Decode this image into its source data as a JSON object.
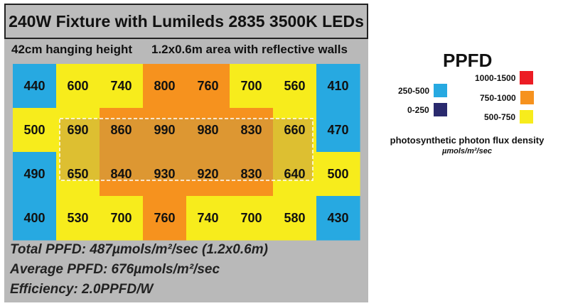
{
  "title": "240W Fixture with Lumileds 2835 3500K LEDs",
  "subtitle_left": "42cm hanging height",
  "subtitle_right": "1.2x0.6m area with reflective walls",
  "chart_data": {
    "type": "heatmap",
    "rows": [
      [
        440,
        600,
        740,
        800,
        760,
        700,
        560,
        410
      ],
      [
        500,
        690,
        860,
        990,
        980,
        830,
        660,
        470
      ],
      [
        490,
        650,
        840,
        930,
        920,
        830,
        640,
        500
      ],
      [
        400,
        530,
        700,
        760,
        740,
        700,
        580,
        430
      ]
    ],
    "color_bins": [
      {
        "label": "0-250",
        "min": 0,
        "max": 250,
        "color": "#2a2a6e"
      },
      {
        "label": "250-500",
        "min": 250,
        "max": 500,
        "color": "#27a9e1"
      },
      {
        "label": "500-750",
        "min": 500,
        "max": 750,
        "color": "#f7ec1c"
      },
      {
        "label": "750-1000",
        "min": 750,
        "max": 1000,
        "color": "#f6921e"
      },
      {
        "label": "1000-1500",
        "min": 1000,
        "max": 1500,
        "color": "#ec1c24"
      }
    ]
  },
  "stats": {
    "total": "Total PPFD: 487µmols/m²/sec  (1.2x0.6m)",
    "average": "Average PPFD: 676µmols/m²/sec",
    "efficiency": "Efficiency: 2.0PPFD/W"
  },
  "legend": {
    "title": "PPFD",
    "description": "photosynthetic photon flux density",
    "unit": "µmols/m²/sec",
    "labels": {
      "b1000": "1000-1500",
      "b250": "250-500",
      "b750": "750-1000",
      "b0": "0-250",
      "b500": "500-750"
    },
    "colors": {
      "red": "#ec1c24",
      "blue": "#27a9e1",
      "orange": "#f6921e",
      "navy": "#2a2a6e",
      "yellow": "#f7ec1c"
    }
  }
}
